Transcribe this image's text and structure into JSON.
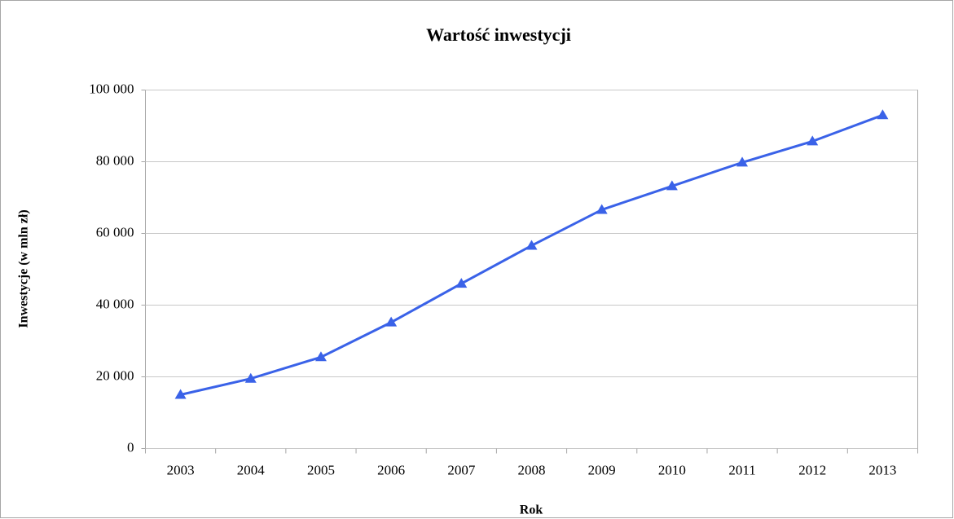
{
  "chart_data": {
    "type": "line",
    "title": "Wartość inwestycji",
    "x_label": "Rok",
    "y_label": "Inwestycje (w mln zł)",
    "categories": [
      "2003",
      "2004",
      "2005",
      "2006",
      "2007",
      "2008",
      "2009",
      "2010",
      "2011",
      "2012",
      "2013"
    ],
    "series": [
      {
        "name": "Inwestycje",
        "color": "#3a62e8",
        "values": [
          15000,
          19500,
          25500,
          35200,
          46000,
          56600,
          66600,
          73200,
          79800,
          85700,
          93000
        ]
      }
    ],
    "ylim": [
      0,
      100000
    ],
    "yticks": [
      {
        "value": 0,
        "label": "0"
      },
      {
        "value": 20000,
        "label": "20 000"
      },
      {
        "value": 40000,
        "label": "40 000"
      },
      {
        "value": 60000,
        "label": "60 000"
      },
      {
        "value": 80000,
        "label": "80 000"
      },
      {
        "value": 100000,
        "label": "100 000"
      }
    ],
    "grid": true,
    "legend": false
  }
}
